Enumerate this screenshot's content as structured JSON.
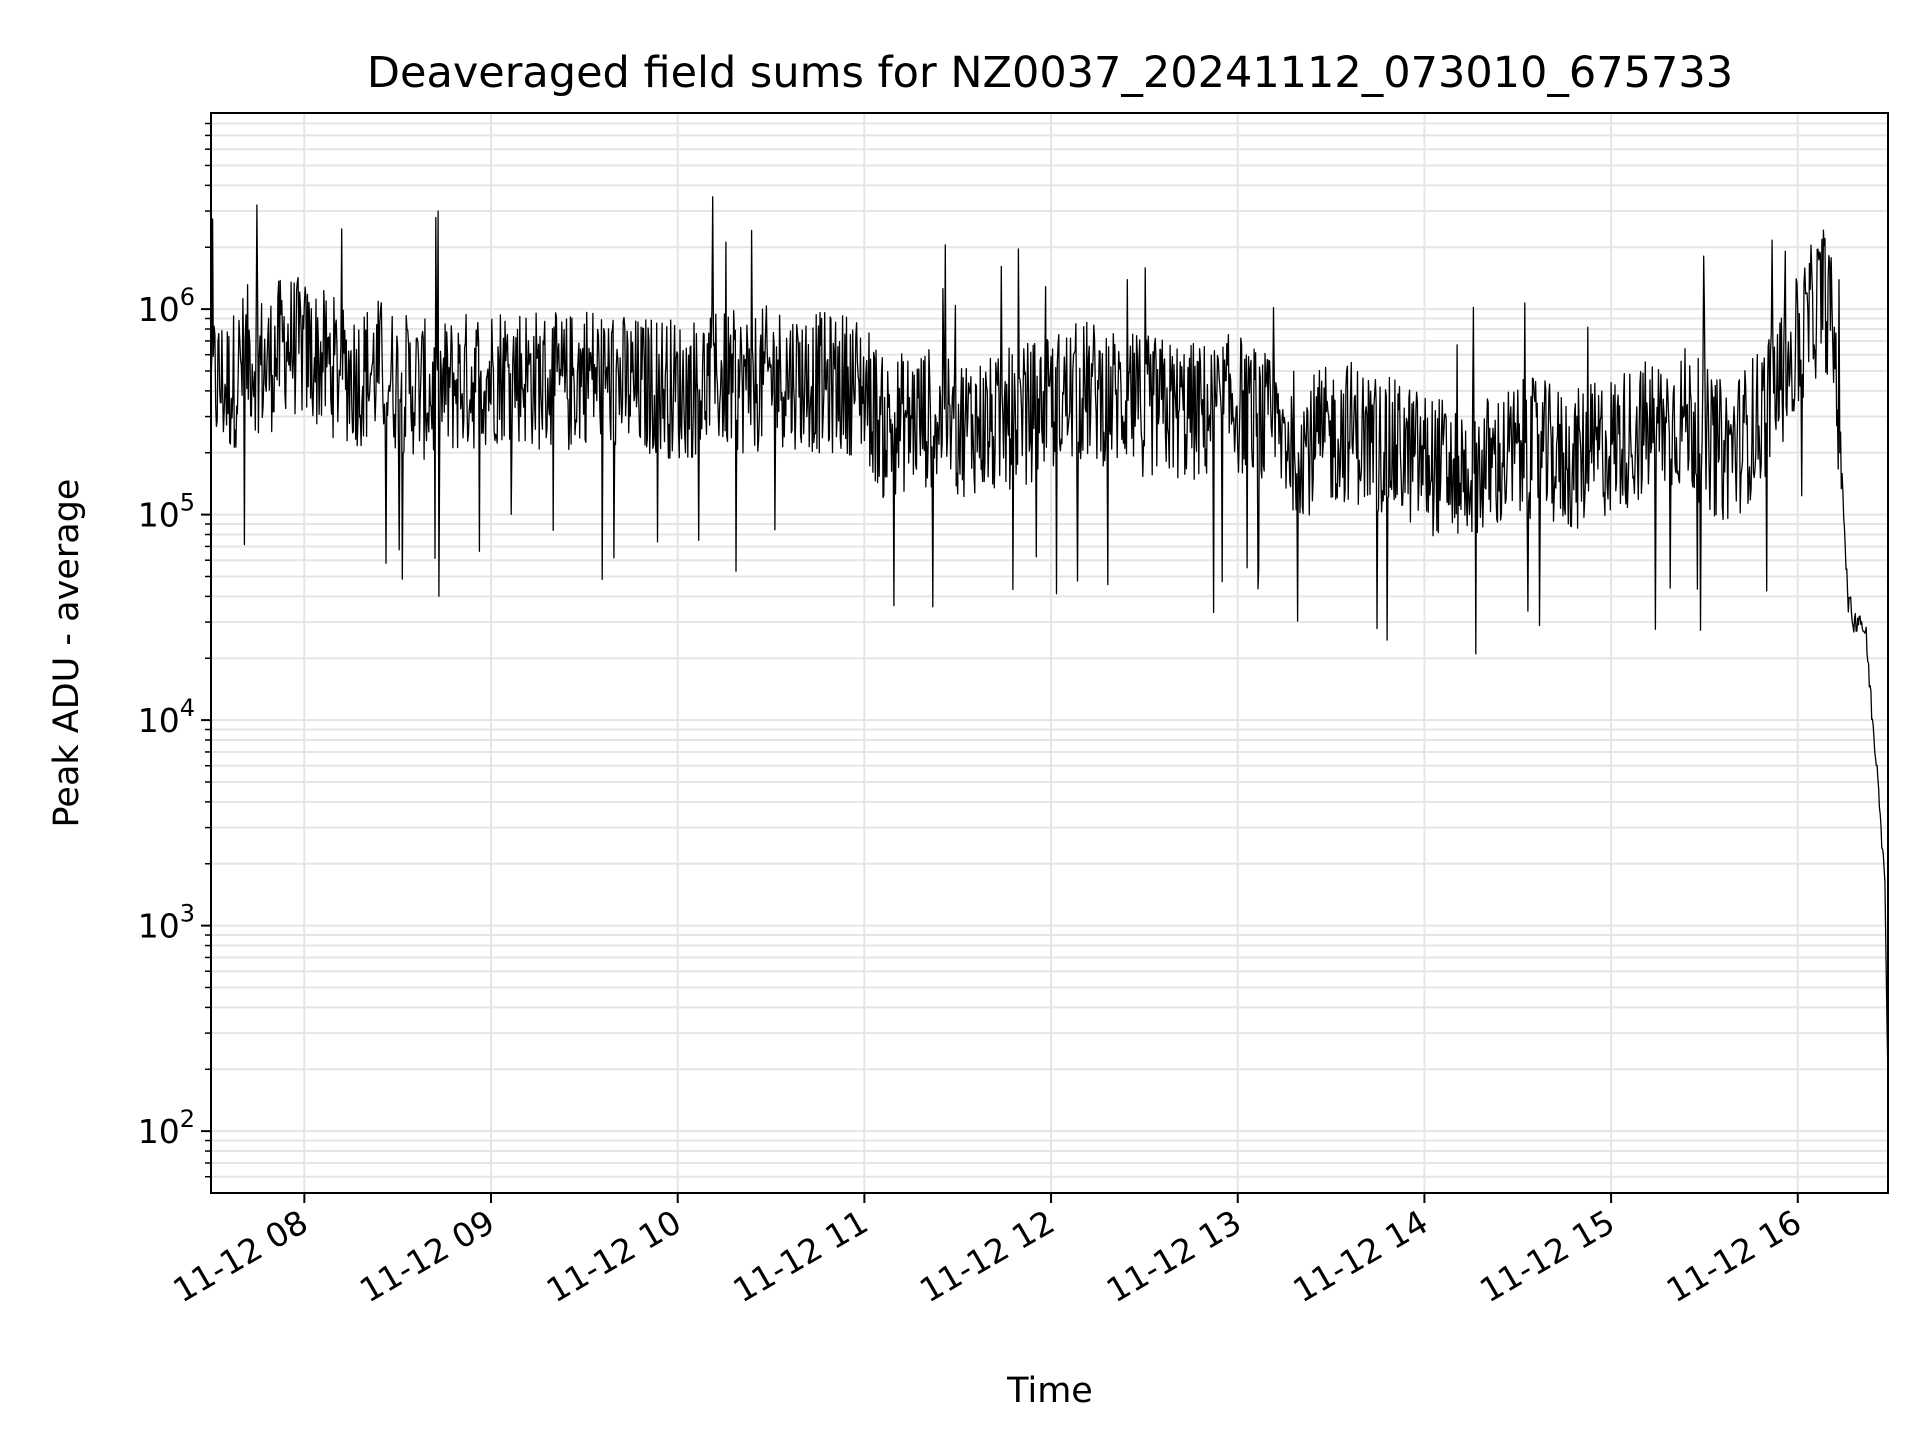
{
  "chart_data": {
    "type": "line",
    "title": "Deaveraged field sums for NZ0037_20241112_073010_675733",
    "xlabel": "Time",
    "ylabel": "Peak ADU - average",
    "yscale": "log",
    "grid": true,
    "grid_minor": true,
    "legend": "none",
    "line_color": "#000000",
    "grid_color": "#e5e5e5",
    "xlim": [
      "11-12 07:30",
      "11-12 16:29"
    ],
    "ylim": [
      50,
      9000000
    ],
    "x_ticks": [
      "11-12 08",
      "11-12 09",
      "11-12 10",
      "11-12 11",
      "11-12 12",
      "11-12 13",
      "11-12 14",
      "11-12 15",
      "11-12 16"
    ],
    "y_ticks": [
      {
        "value": 100,
        "base": "10",
        "exp": "2"
      },
      {
        "value": 1000,
        "base": "10",
        "exp": "3"
      },
      {
        "value": 10000,
        "base": "10",
        "exp": "4"
      },
      {
        "value": 100000,
        "base": "10",
        "exp": "5"
      },
      {
        "value": 1000000,
        "base": "10",
        "exp": "6"
      }
    ],
    "series": [
      {
        "points": [
          [
            "11-12 07:30",
            450000
          ],
          [
            "11-12 07:36",
            420000
          ],
          [
            "11-12 07:42",
            600000
          ],
          [
            "11-12 07:48",
            520000
          ],
          [
            "11-12 07:54",
            700000
          ],
          [
            "11-12 08:00",
            620000
          ],
          [
            "11-12 08:06",
            560000
          ],
          [
            "11-12 08:12",
            500000
          ],
          [
            "11-12 08:18",
            470000
          ],
          [
            "11-12 08:24",
            520000
          ],
          [
            "11-12 08:30",
            440000
          ],
          [
            "11-12 08:36",
            420000
          ],
          [
            "11-12 08:42",
            380000
          ],
          [
            "11-12 08:48",
            430000
          ],
          [
            "11-12 08:54",
            450000
          ],
          [
            "11-12 09:00",
            480000
          ],
          [
            "11-12 09:06",
            510000
          ],
          [
            "11-12 09:12",
            470000
          ],
          [
            "11-12 09:18",
            440000
          ],
          [
            "11-12 09:24",
            420000
          ],
          [
            "11-12 09:30",
            500000
          ],
          [
            "11-12 09:36",
            460000
          ],
          [
            "11-12 09:42",
            430000
          ],
          [
            "11-12 09:48",
            410000
          ],
          [
            "11-12 09:54",
            440000
          ],
          [
            "11-12 10:00",
            400000
          ],
          [
            "11-12 10:06",
            420000
          ],
          [
            "11-12 10:12",
            460000
          ],
          [
            "11-12 10:18",
            440000
          ],
          [
            "11-12 10:24",
            430000
          ],
          [
            "11-12 10:30",
            480000
          ],
          [
            "11-12 10:36",
            470000
          ],
          [
            "11-12 10:42",
            450000
          ],
          [
            "11-12 10:48",
            430000
          ],
          [
            "11-12 10:54",
            440000
          ],
          [
            "11-12 11:00",
            420000
          ],
          [
            "11-12 11:06",
            260000
          ],
          [
            "11-12 11:12",
            280000
          ],
          [
            "11-12 11:18",
            300000
          ],
          [
            "11-12 11:24",
            290000
          ],
          [
            "11-12 11:30",
            270000
          ],
          [
            "11-12 11:36",
            280000
          ],
          [
            "11-12 11:42",
            260000
          ],
          [
            "11-12 11:48",
            300000
          ],
          [
            "11-12 11:54",
            320000
          ],
          [
            "11-12 12:00",
            350000
          ],
          [
            "11-12 12:06",
            380000
          ],
          [
            "11-12 12:12",
            400000
          ],
          [
            "11-12 12:18",
            380000
          ],
          [
            "11-12 12:24",
            360000
          ],
          [
            "11-12 12:30",
            340000
          ],
          [
            "11-12 12:36",
            330000
          ],
          [
            "11-12 12:42",
            320000
          ],
          [
            "11-12 12:48",
            310000
          ],
          [
            "11-12 12:54",
            330000
          ],
          [
            "11-12 13:00",
            350000
          ],
          [
            "11-12 13:06",
            300000
          ],
          [
            "11-12 13:12",
            250000
          ],
          [
            "11-12 13:18",
            230000
          ],
          [
            "11-12 13:24",
            220000
          ],
          [
            "11-12 13:30",
            240000
          ],
          [
            "11-12 13:36",
            260000
          ],
          [
            "11-12 13:42",
            230000
          ],
          [
            "11-12 13:48",
            210000
          ],
          [
            "11-12 13:54",
            200000
          ],
          [
            "11-12 14:00",
            180000
          ],
          [
            "11-12 14:06",
            170000
          ],
          [
            "11-12 14:12",
            160000
          ],
          [
            "11-12 14:18",
            170000
          ],
          [
            "11-12 14:24",
            180000
          ],
          [
            "11-12 14:30",
            200000
          ],
          [
            "11-12 14:36",
            210000
          ],
          [
            "11-12 14:42",
            190000
          ],
          [
            "11-12 14:48",
            180000
          ],
          [
            "11-12 14:54",
            200000
          ],
          [
            "11-12 15:00",
            220000
          ],
          [
            "11-12 15:06",
            240000
          ],
          [
            "11-12 15:12",
            260000
          ],
          [
            "11-12 15:18",
            280000
          ],
          [
            "11-12 15:24",
            300000
          ],
          [
            "11-12 15:30",
            240000
          ],
          [
            "11-12 15:36",
            200000
          ],
          [
            "11-12 15:42",
            230000
          ],
          [
            "11-12 15:48",
            300000
          ],
          [
            "11-12 15:54",
            450000
          ],
          [
            "11-12 16:00",
            650000
          ],
          [
            "11-12 16:04",
            900000
          ],
          [
            "11-12 16:08",
            1200000
          ],
          [
            "11-12 16:10",
            1000000
          ],
          [
            "11-12 16:12",
            600000
          ],
          [
            "11-12 16:14",
            200000
          ],
          [
            "11-12 16:16",
            40000
          ],
          [
            "11-12 16:18",
            30000
          ],
          [
            "11-12 16:20",
            32000
          ],
          [
            "11-12 16:22",
            25000
          ],
          [
            "11-12 16:24",
            10000
          ],
          [
            "11-12 16:26",
            5000
          ],
          [
            "11-12 16:28",
            1500
          ],
          [
            "11-12 16:29",
            200
          ]
        ]
      }
    ]
  }
}
